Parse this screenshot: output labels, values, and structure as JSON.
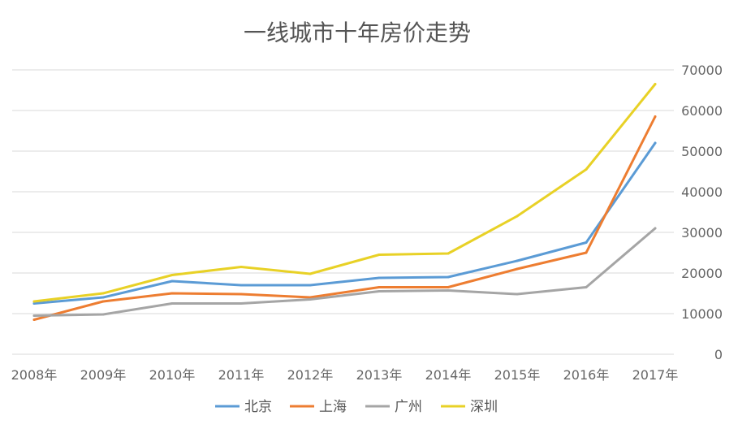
{
  "chart_data": {
    "type": "line",
    "title": "一线城市十年房价走势",
    "categories": [
      "2008年",
      "2009年",
      "2010年",
      "2011年",
      "2012年",
      "2013年",
      "2014年",
      "2015年",
      "2016年",
      "2017年"
    ],
    "yticks": [
      "0",
      "10000",
      "20000",
      "30000",
      "40000",
      "50000",
      "60000",
      "70000"
    ],
    "ylim": [
      0,
      70000
    ],
    "legend_position": "bottom",
    "grid": true,
    "series": [
      {
        "name": "北京",
        "color": "#5B9BD5",
        "values": [
          12500,
          14000,
          18000,
          17000,
          17000,
          18800,
          19000,
          23000,
          27500,
          52000
        ]
      },
      {
        "name": "上海",
        "color": "#ED7D31",
        "values": [
          8500,
          13000,
          15000,
          14800,
          14000,
          16500,
          16500,
          21000,
          25000,
          58500
        ]
      },
      {
        "name": "广州",
        "color": "#A5A5A5",
        "values": [
          9500,
          9800,
          12500,
          12500,
          13500,
          15500,
          15700,
          14800,
          16500,
          31000
        ]
      },
      {
        "name": "深圳",
        "color": "#E8D126",
        "values": [
          13000,
          15000,
          19500,
          21500,
          19800,
          24500,
          24800,
          34000,
          45500,
          66500
        ]
      }
    ]
  }
}
